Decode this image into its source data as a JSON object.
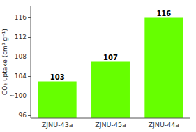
{
  "chart_data": {
    "type": "bar",
    "categories": [
      "ZJNU-43a",
      "ZJNU-45a",
      "ZJNU-44a"
    ],
    "values": [
      103,
      107,
      116
    ],
    "color": "#66ff00",
    "ylabel": "CO₂ uptake (cm³ g⁻¹)",
    "ylim": [
      95.5,
      118.5
    ],
    "yticks": [
      96,
      {
        "value": 100,
        "label": "~100"
      },
      104,
      108,
      112,
      116
    ],
    "grid": false,
    "data_labels": true
  }
}
